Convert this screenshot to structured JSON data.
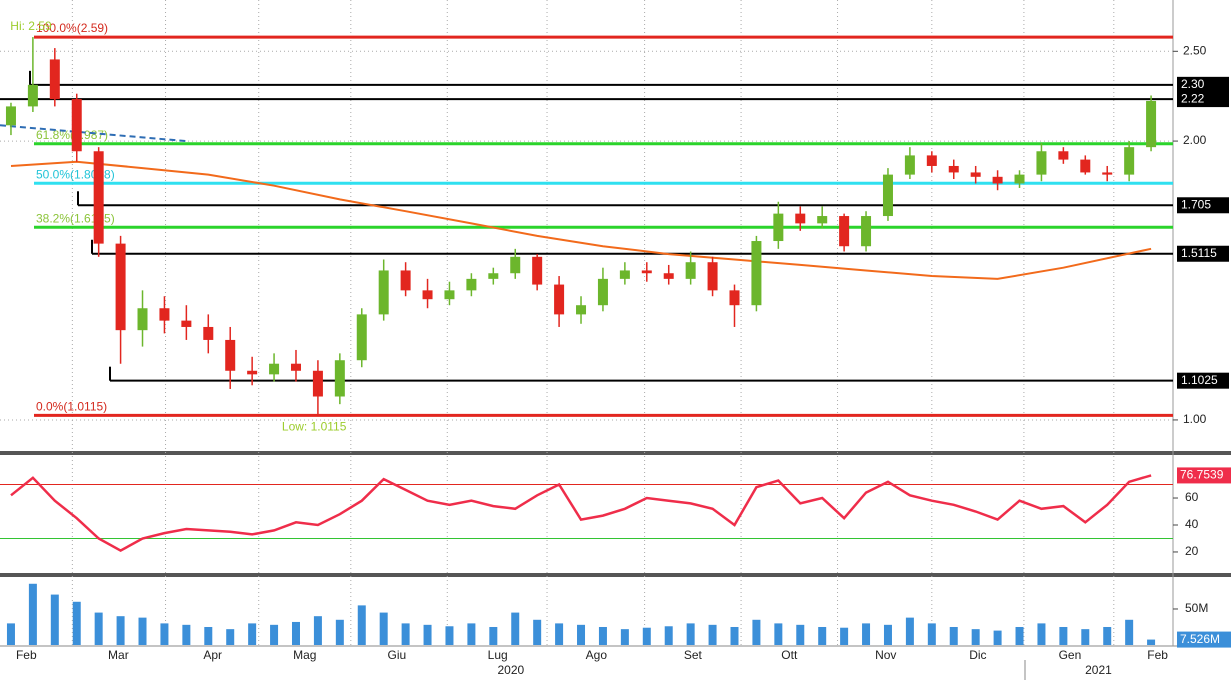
{
  "chart_data": {
    "type": "candlestick",
    "log": true,
    "grid": true,
    "xlim": [
      -0.5,
      53
    ],
    "ylim": [
      0.928,
      2.84
    ],
    "yticks": [
      {
        "value": 1,
        "label": "1.00"
      },
      {
        "value": 2,
        "label": "2.00"
      },
      {
        "value": 2.5,
        "label": "2.50"
      }
    ],
    "xticks": [
      {
        "value": 0.7,
        "label": "Feb"
      },
      {
        "value": 4.9,
        "label": "Mar"
      },
      {
        "value": 9.2,
        "label": "Apr"
      },
      {
        "value": 13.4,
        "label": "Mag"
      },
      {
        "value": 17.6,
        "label": "Giu"
      },
      {
        "value": 22.2,
        "label": "Lug"
      },
      {
        "value": 26.7,
        "label": "Ago"
      },
      {
        "value": 31.1,
        "label": "Set"
      },
      {
        "value": 35.5,
        "label": "Ott"
      },
      {
        "value": 39.9,
        "label": "Nov"
      },
      {
        "value": 44.1,
        "label": "Dic"
      },
      {
        "value": 48.3,
        "label": "Gen"
      },
      {
        "value": 52.3,
        "label": "Feb"
      }
    ],
    "year_ticks": [
      {
        "value": 22.8,
        "label": "2020"
      },
      {
        "value": 49.6,
        "label": "2021"
      }
    ],
    "up_color": "#6cb62c",
    "down_color": "#e2261f",
    "x": [
      0,
      1,
      2,
      3,
      4,
      5,
      6,
      7,
      8,
      9,
      10,
      11,
      12,
      13,
      14,
      15,
      16,
      17,
      18,
      19,
      20,
      21,
      22,
      23,
      24,
      25,
      26,
      27,
      28,
      29,
      30,
      31,
      32,
      33,
      34,
      35,
      36,
      37,
      38,
      39,
      40,
      41,
      42,
      43,
      44,
      45,
      46,
      47,
      48,
      49,
      50,
      51,
      52
    ],
    "open": [
      2.08,
      2.18,
      2.45,
      2.22,
      1.95,
      1.55,
      1.25,
      1.32,
      1.28,
      1.26,
      1.22,
      1.13,
      1.12,
      1.15,
      1.13,
      1.06,
      1.16,
      1.3,
      1.45,
      1.38,
      1.35,
      1.38,
      1.42,
      1.44,
      1.5,
      1.4,
      1.3,
      1.33,
      1.42,
      1.45,
      1.44,
      1.42,
      1.48,
      1.38,
      1.33,
      1.56,
      1.67,
      1.63,
      1.66,
      1.54,
      1.66,
      1.84,
      1.93,
      1.88,
      1.85,
      1.83,
      1.8,
      1.84,
      1.95,
      1.91,
      1.85,
      1.84,
      1.97
    ],
    "high": [
      2.2,
      2.59,
      2.52,
      2.25,
      1.97,
      1.58,
      1.38,
      1.36,
      1.33,
      1.3,
      1.26,
      1.17,
      1.18,
      1.19,
      1.16,
      1.18,
      1.32,
      1.49,
      1.48,
      1.42,
      1.41,
      1.44,
      1.46,
      1.53,
      1.51,
      1.43,
      1.36,
      1.46,
      1.48,
      1.48,
      1.47,
      1.52,
      1.5,
      1.4,
      1.58,
      1.72,
      1.7,
      1.7,
      1.67,
      1.68,
      1.87,
      1.97,
      1.95,
      1.91,
      1.88,
      1.86,
      1.86,
      1.99,
      1.97,
      1.93,
      1.88,
      2.0,
      2.24
    ],
    "low": [
      2.03,
      2.15,
      2.18,
      1.9,
      1.5,
      1.15,
      1.2,
      1.24,
      1.22,
      1.18,
      1.08,
      1.09,
      1.1,
      1.1,
      1.0115,
      1.04,
      1.14,
      1.28,
      1.36,
      1.32,
      1.33,
      1.36,
      1.4,
      1.42,
      1.38,
      1.26,
      1.27,
      1.31,
      1.4,
      1.41,
      1.4,
      1.4,
      1.36,
      1.26,
      1.31,
      1.53,
      1.6,
      1.61,
      1.52,
      1.52,
      1.64,
      1.82,
      1.85,
      1.82,
      1.8,
      1.77,
      1.78,
      1.81,
      1.89,
      1.84,
      1.81,
      1.81,
      1.95
    ],
    "close": [
      2.18,
      2.3,
      2.22,
      1.95,
      1.55,
      1.25,
      1.32,
      1.28,
      1.26,
      1.22,
      1.13,
      1.12,
      1.15,
      1.13,
      1.06,
      1.16,
      1.3,
      1.45,
      1.38,
      1.35,
      1.38,
      1.42,
      1.44,
      1.5,
      1.4,
      1.3,
      1.33,
      1.42,
      1.45,
      1.44,
      1.42,
      1.48,
      1.38,
      1.33,
      1.56,
      1.67,
      1.63,
      1.66,
      1.54,
      1.66,
      1.84,
      1.93,
      1.88,
      1.85,
      1.83,
      1.8,
      1.84,
      1.95,
      1.91,
      1.85,
      1.84,
      1.97,
      2.21
    ],
    "moving_average": {
      "color": "#f26a1b",
      "x": [
        0,
        3,
        6,
        9,
        12,
        15,
        18,
        21,
        24,
        27,
        30,
        33,
        36,
        39,
        42,
        45,
        48,
        52
      ],
      "values": [
        1.88,
        1.9,
        1.87,
        1.84,
        1.79,
        1.73,
        1.68,
        1.63,
        1.58,
        1.54,
        1.51,
        1.49,
        1.47,
        1.45,
        1.43,
        1.42,
        1.46,
        1.53
      ]
    },
    "trendline": {
      "color": "#2e6db4",
      "x": [
        -0.5,
        8
      ],
      "values": [
        2.08,
        2.0
      ]
    },
    "fib_levels": [
      {
        "value": 2.59,
        "label": "100.0%(2.59)",
        "color": "#e2261f",
        "text_color": "#d42a1e"
      },
      {
        "value": 1.987,
        "label": "61.8%(1.987)",
        "color": "#2bd42b",
        "text_color": "#8cc43a"
      },
      {
        "value": 1.8008,
        "label": "50.0%(1.8008)",
        "color": "#2fe0f0",
        "text_color": "#22c4d8"
      },
      {
        "value": 1.6145,
        "label": "38.2%(1.6145)",
        "color": "#2bd42b",
        "text_color": "#8cc43a"
      },
      {
        "value": 1.0115,
        "label": "0.0%(1.0115)",
        "color": "#e2261f",
        "text_color": "#d42a1e"
      }
    ],
    "price_levels": [
      {
        "value": 2.3,
        "label": "2.30"
      },
      {
        "value": 2.22,
        "label": "2.22"
      },
      {
        "value": 1.705,
        "label": "1.705"
      },
      {
        "value": 1.5115,
        "label": "1.5115"
      },
      {
        "value": 1.1025,
        "label": "1.1025"
      }
    ],
    "annotations": [
      {
        "text": "Hi: 2.59",
        "x": 0.7,
        "y": 2.59
      },
      {
        "text": "Low: 1.0115",
        "x": 14,
        "y": 1.0115
      }
    ],
    "rsi": {
      "color": "#ef2d4a",
      "ylim": [
        4.4,
        91.9
      ],
      "yticks": [
        20,
        40,
        60
      ],
      "bands": [
        {
          "value": 70,
          "color": "#e2261f"
        },
        {
          "value": 30,
          "color": "#33c433"
        }
      ],
      "values": [
        62,
        75,
        58,
        45,
        30,
        21,
        30,
        34,
        37,
        36,
        35,
        33,
        36,
        42,
        40,
        48,
        58,
        74,
        66,
        58,
        55,
        58,
        54,
        52,
        62,
        70,
        44,
        47,
        52,
        60,
        58,
        56,
        52,
        40,
        68,
        73,
        56,
        60,
        45,
        64,
        72,
        62,
        58,
        55,
        50,
        44,
        58,
        52,
        54,
        42,
        55,
        72,
        76.7539
      ]
    },
    "volume": {
      "color": "#3b8fd9",
      "ylim": [
        0,
        94.4
      ],
      "yticks": [
        {
          "value": 50,
          "label": "50M"
        }
      ],
      "values": [
        30,
        85,
        70,
        60,
        45,
        40,
        38,
        30,
        28,
        25,
        22,
        30,
        28,
        32,
        40,
        35,
        55,
        45,
        30,
        28,
        26,
        30,
        25,
        45,
        35,
        30,
        28,
        25,
        22,
        24,
        26,
        30,
        28,
        25,
        35,
        30,
        28,
        25,
        24,
        30,
        28,
        38,
        30,
        25,
        22,
        20,
        25,
        30,
        25,
        22,
        25,
        35,
        7.526
      ],
      "current": {
        "value": 7.526,
        "label": "7.526M"
      }
    }
  }
}
